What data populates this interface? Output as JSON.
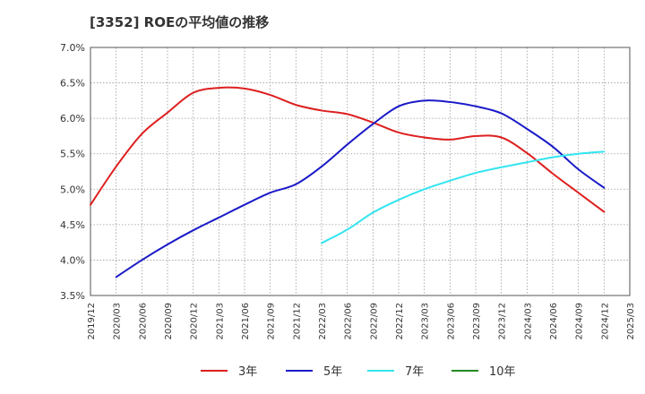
{
  "chart_data": {
    "type": "line",
    "title": "[3352]  ROEの平均値の推移",
    "xlabel": "",
    "ylabel": "",
    "ylim": [
      3.5,
      7.0
    ],
    "yticks": [
      3.5,
      4.0,
      4.5,
      5.0,
      5.5,
      6.0,
      6.5,
      7.0
    ],
    "ytick_labels": [
      "3.5%",
      "4.0%",
      "4.5%",
      "5.0%",
      "5.5%",
      "6.0%",
      "6.5%",
      "7.0%"
    ],
    "x_categories": [
      "2019/12",
      "2020/03",
      "2020/06",
      "2020/09",
      "2020/12",
      "2021/03",
      "2021/06",
      "2021/09",
      "2021/12",
      "2022/03",
      "2022/06",
      "2022/09",
      "2022/12",
      "2023/03",
      "2023/06",
      "2023/09",
      "2023/12",
      "2024/03",
      "2024/06",
      "2024/09",
      "2024/12",
      "2025/03"
    ],
    "grid": true,
    "legend_position": "bottom",
    "series": [
      {
        "name": "3年",
        "color": "#dd1f1f",
        "start_index": 0,
        "values": [
          4.78,
          5.32,
          5.78,
          6.08,
          6.36,
          6.43,
          6.42,
          6.33,
          6.19,
          6.11,
          6.06,
          5.94,
          5.8,
          5.73,
          5.7,
          5.75,
          5.73,
          5.51,
          5.22,
          4.95,
          4.68
        ]
      },
      {
        "name": "5年",
        "color": "#1a1ac8",
        "start_index": 1,
        "values": [
          3.76,
          4.0,
          4.22,
          4.42,
          4.6,
          4.78,
          4.95,
          5.07,
          5.32,
          5.63,
          5.92,
          6.17,
          6.25,
          6.23,
          6.17,
          6.07,
          5.85,
          5.6,
          5.28,
          5.02
        ]
      },
      {
        "name": "7年",
        "color": "#33e5f0",
        "start_index": 9,
        "values": [
          4.24,
          4.43,
          4.67,
          4.85,
          5.0,
          5.12,
          5.23,
          5.31,
          5.38,
          5.45,
          5.5,
          5.53
        ]
      },
      {
        "name": "10年",
        "color": "#228b22",
        "start_index": 0,
        "values": []
      }
    ]
  }
}
